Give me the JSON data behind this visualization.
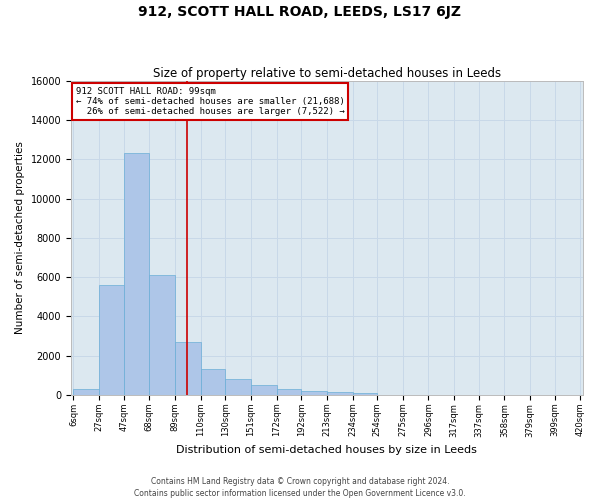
{
  "title": "912, SCOTT HALL ROAD, LEEDS, LS17 6JZ",
  "subtitle": "Size of property relative to semi-detached houses in Leeds",
  "xlabel": "Distribution of semi-detached houses by size in Leeds",
  "ylabel": "Number of semi-detached properties",
  "property_label": "912 SCOTT HALL ROAD: 99sqm",
  "property_size": 99,
  "pct_smaller": 74,
  "pct_larger": 26,
  "n_smaller": "21,688",
  "n_larger": "7,522",
  "bin_edges": [
    6,
    27,
    47,
    68,
    89,
    110,
    130,
    151,
    172,
    192,
    213,
    234,
    254,
    275,
    296,
    317,
    337,
    358,
    379,
    399,
    420
  ],
  "bin_labels": [
    "6sqm",
    "27sqm",
    "47sqm",
    "68sqm",
    "89sqm",
    "110sqm",
    "130sqm",
    "151sqm",
    "172sqm",
    "192sqm",
    "213sqm",
    "234sqm",
    "254sqm",
    "275sqm",
    "296sqm",
    "317sqm",
    "337sqm",
    "358sqm",
    "379sqm",
    "399sqm",
    "420sqm"
  ],
  "bar_heights": [
    300,
    5600,
    12300,
    6100,
    2700,
    1300,
    800,
    500,
    300,
    200,
    150,
    100,
    0,
    0,
    0,
    0,
    0,
    0,
    0,
    0
  ],
  "bar_color": "#aec6e8",
  "bar_edgecolor": "#6aaed6",
  "redline_color": "#cc0000",
  "annotation_box_edgecolor": "#cc0000",
  "annotation_box_facecolor": "white",
  "grid_color": "#c8d8e8",
  "background_color": "#dce8f0",
  "ylim": [
    0,
    16000
  ],
  "yticks": [
    0,
    2000,
    4000,
    6000,
    8000,
    10000,
    12000,
    14000,
    16000
  ],
  "footer_line1": "Contains HM Land Registry data © Crown copyright and database right 2024.",
  "footer_line2": "Contains public sector information licensed under the Open Government Licence v3.0."
}
